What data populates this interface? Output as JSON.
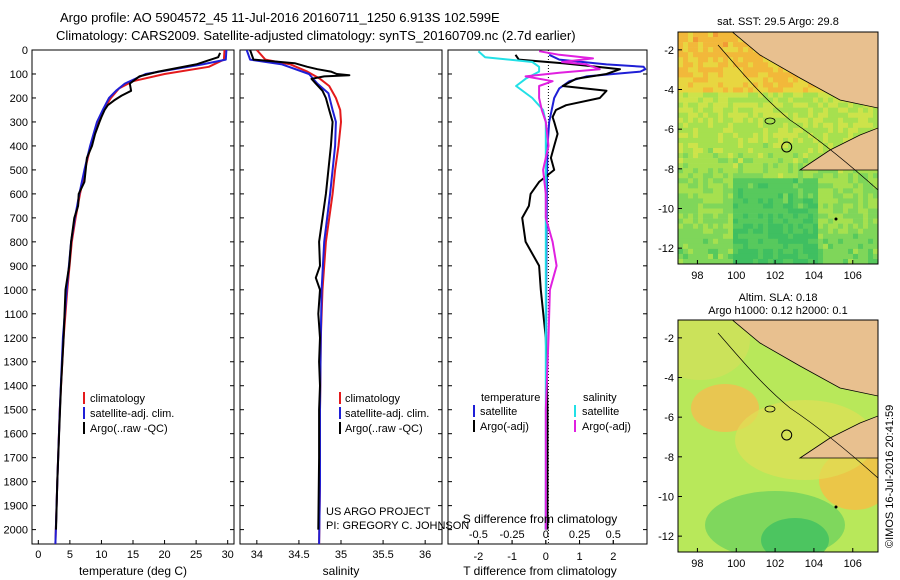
{
  "header": {
    "line1": "Argo profile: AO 5904572_45 11-Jul-2016 20160711_1250 6.913S 102.599E",
    "line2": "Climatology: CARS2009. Satellite-adjusted climatology: synTS_20160709.nc (2.7d earlier)"
  },
  "colors": {
    "climatology": "#e41a1c",
    "satellite": "#1f1fd6",
    "argo": "#000000",
    "sal_satellite": "#22e0e6",
    "sal_argo": "#e020e0"
  },
  "depth_axis": {
    "ticks": [
      "0",
      "100",
      "200",
      "300",
      "400",
      "500",
      "600",
      "700",
      "800",
      "900",
      "1000",
      "1100",
      "1200",
      "1300",
      "1400",
      "1500",
      "1600",
      "1700",
      "1800",
      "1900",
      "2000"
    ],
    "range": [
      0,
      2060
    ]
  },
  "chart_data": [
    {
      "type": "line",
      "name": "temperature-profile",
      "xlabel": "temperature (deg C)",
      "xlim": [
        -1,
        31
      ],
      "xticks": [
        "0",
        "5",
        "10",
        "15",
        "20",
        "25",
        "30"
      ],
      "ylim": [
        0,
        2060
      ],
      "legend": [
        "climatology",
        "satellite-adj. clim.",
        "Argo(..raw -QC)"
      ],
      "series": [
        {
          "name": "climatology",
          "color": "climatology",
          "depth": [
            0,
            40,
            70,
            100,
            130,
            160,
            200,
            250,
            300,
            400,
            500,
            600,
            700,
            800,
            1000,
            1200,
            1500,
            1800,
            2060
          ],
          "values": [
            29.5,
            29.4,
            27,
            20,
            15,
            12.8,
            11.5,
            10.3,
            9.4,
            8.3,
            7.4,
            6.6,
            5.9,
            5.3,
            4.6,
            4,
            3.4,
            3,
            2.7
          ]
        },
        {
          "name": "satellite-adj. clim.",
          "color": "satellite",
          "depth": [
            0,
            40,
            60,
            100,
            140,
            170,
            200,
            250,
            300,
            400,
            500,
            600,
            700,
            800,
            1000,
            1200,
            1500,
            1800,
            2060
          ],
          "values": [
            29.8,
            29.7,
            26,
            17,
            13.7,
            12.3,
            11.2,
            10.2,
            9.3,
            8.2,
            7.3,
            6.5,
            5.8,
            5.2,
            4.5,
            3.9,
            3.4,
            3,
            2.7
          ]
        },
        {
          "name": "Argo(..raw -QC)",
          "color": "argo",
          "depth": [
            12,
            30,
            60,
            90,
            110,
            140,
            170,
            190,
            210,
            230,
            250,
            280,
            300,
            350,
            400,
            450,
            500,
            550,
            600,
            650,
            700,
            800,
            900,
            1000,
            1200,
            1400,
            1600,
            1800,
            2000
          ],
          "values": [
            28.8,
            28.5,
            25,
            19,
            16,
            14.5,
            14.7,
            13.2,
            12,
            11,
            10.5,
            10,
            9.7,
            9,
            8.5,
            7.7,
            7.5,
            7.3,
            6.4,
            6.3,
            5.7,
            5.2,
            4.9,
            4.3,
            4,
            3.6,
            3.3,
            3,
            2.8
          ]
        }
      ]
    },
    {
      "type": "line",
      "name": "salinity-profile",
      "xlabel": "salinity",
      "xlim": [
        33.8,
        36.2
      ],
      "xticks": [
        "34",
        "34.5",
        "35",
        "35.5",
        "36"
      ],
      "ylim": [
        0,
        2060
      ],
      "legend": [
        "climatology",
        "satellite-adj. clim.",
        "Argo(..raw -QC)"
      ],
      "credit": [
        "US ARGO PROJECT",
        "PI: GREGORY C. JOHNSON"
      ],
      "series": [
        {
          "name": "climatology",
          "color": "climatology",
          "depth": [
            0,
            40,
            60,
            90,
            120,
            150,
            200,
            250,
            300,
            400,
            500,
            600,
            800,
            1000,
            1200,
            1500,
            1800,
            2060
          ],
          "values": [
            34.0,
            34.1,
            34.4,
            34.6,
            34.75,
            34.86,
            34.94,
            34.99,
            35.0,
            34.97,
            34.93,
            34.9,
            34.82,
            34.78,
            34.76,
            34.75,
            34.75,
            34.74
          ]
        },
        {
          "name": "satellite-adj. clim.",
          "color": "satellite",
          "depth": [
            0,
            40,
            60,
            100,
            140,
            180,
            250,
            300,
            400,
            500,
            600,
            800,
            1000,
            1200,
            1500,
            1800,
            2060
          ],
          "values": [
            33.88,
            33.92,
            34.3,
            34.62,
            34.72,
            34.85,
            34.9,
            34.94,
            34.93,
            34.9,
            34.87,
            34.8,
            34.77,
            34.76,
            34.75,
            34.75,
            34.74
          ]
        },
        {
          "name": "Argo(..raw -QC)",
          "color": "argo",
          "depth": [
            0,
            40,
            55,
            70,
            80,
            90,
            100,
            105,
            110,
            120,
            140,
            170,
            200,
            250,
            300,
            400,
            500,
            600,
            700,
            800,
            900,
            950,
            1000,
            1100,
            1200,
            1300,
            1400,
            1500,
            1700,
            2000
          ],
          "values": [
            33.92,
            33.96,
            34.45,
            34.6,
            34.72,
            34.88,
            34.95,
            35.1,
            34.8,
            34.65,
            34.7,
            34.78,
            34.82,
            34.86,
            34.9,
            34.88,
            34.85,
            34.82,
            34.78,
            34.74,
            34.75,
            34.7,
            34.75,
            34.73,
            34.75,
            34.74,
            34.75,
            34.74,
            34.74,
            34.73
          ]
        }
      ]
    },
    {
      "type": "line",
      "name": "difference-profile",
      "xlabel_top": "S difference from climatology",
      "xlabel": "T difference from climatology",
      "xlim": [
        -2.9,
        3.0
      ],
      "xticks_t": [
        "-2",
        "-1",
        "0",
        "1",
        "2"
      ],
      "xticks_s": [
        "-0.5",
        "-0.25",
        "0",
        "0.25",
        "0.5"
      ],
      "ylim": [
        0,
        2060
      ],
      "legend": {
        "temperature_header": "temperature",
        "salinity_header": "salinity",
        "items": [
          "satellite",
          "Argo(-adj)",
          "satellite",
          "Argo(-adj)"
        ]
      },
      "series": [
        {
          "name": "T satellite",
          "color": "satellite",
          "depth": [
            20,
            40,
            60,
            70,
            80,
            90,
            100,
            110,
            130,
            160,
            200,
            300,
            400,
            600,
            800,
            1000,
            1500,
            2000
          ],
          "values": [
            0.1,
            0.4,
            1.8,
            2.9,
            2.95,
            2.8,
            2.0,
            1.2,
            0.7,
            0.4,
            0.25,
            0.1,
            0.05,
            0.03,
            0.02,
            0.01,
            0.01,
            0.0
          ]
        },
        {
          "name": "T Argo(-adj)",
          "color": "argo",
          "depth": [
            20,
            40,
            55,
            65,
            80,
            100,
            120,
            150,
            170,
            200,
            230,
            250,
            280,
            300,
            350,
            400,
            450,
            500,
            550,
            600,
            650,
            700,
            800,
            900,
            1000,
            1200,
            1500,
            2000
          ],
          "values": [
            -0.9,
            -0.8,
            0.5,
            1.2,
            2.2,
            1.8,
            0.9,
            0.5,
            1.8,
            1.6,
            0.6,
            0.3,
            0.2,
            0.25,
            0.35,
            0.25,
            0.15,
            0.25,
            -0.2,
            -0.45,
            -0.5,
            -0.7,
            -0.6,
            -0.2,
            -0.15,
            0.0,
            0.05,
            0.05
          ]
        },
        {
          "name": "S satellite",
          "color": "sal_satellite",
          "depth": [
            5,
            30,
            50,
            70,
            90,
            120,
            150,
            200,
            250,
            300,
            400,
            600,
            800,
            1000,
            1200,
            1500,
            2000
          ],
          "values": [
            -0.5,
            -0.45,
            -0.1,
            -0.05,
            -0.05,
            -0.15,
            -0.22,
            -0.1,
            -0.02,
            0.0,
            0.0,
            0.0,
            0.0,
            0.0,
            0.0,
            0.0,
            0.0
          ]
        },
        {
          "name": "S Argo(-adj)",
          "color": "sal_argo",
          "depth": [
            5,
            20,
            35,
            50,
            60,
            80,
            95,
            110,
            130,
            150,
            200,
            250,
            300,
            400,
            500,
            600,
            700,
            800,
            900,
            1000,
            1200,
            1500,
            2000
          ],
          "values": [
            -0.05,
            0.1,
            0.35,
            0.12,
            0.3,
            0.4,
            0.1,
            -0.15,
            0.05,
            -0.05,
            -0.05,
            -0.03,
            0.0,
            0.02,
            -0.02,
            0.0,
            0.0,
            0.05,
            0.08,
            0.03,
            0.02,
            0.0,
            0.0
          ]
        }
      ]
    },
    {
      "type": "heatmap",
      "name": "sst-map",
      "title": "sat. SST: 29.5 Argo: 29.8",
      "xlim": [
        97,
        107.3
      ],
      "ylim": [
        -12.8,
        -1.1
      ],
      "xticks": [
        "98",
        "100",
        "102",
        "104",
        "106"
      ],
      "yticks": [
        "-2",
        "-4",
        "-6",
        "-8",
        "-10",
        "-12"
      ],
      "profile_marker": {
        "lon": 102.6,
        "lat": -6.9
      }
    },
    {
      "type": "heatmap",
      "name": "sla-map",
      "title_line1": "Altim. SLA: 0.18",
      "title_line2": "Argo h1000: 0.12 h2000: 0.1",
      "xlim": [
        97,
        107.3
      ],
      "ylim": [
        -12.8,
        -1.1
      ],
      "xticks": [
        "98",
        "100",
        "102",
        "104",
        "106"
      ],
      "yticks": [
        "-2",
        "-4",
        "-6",
        "-8",
        "-10",
        "-12"
      ],
      "profile_marker": {
        "lon": 102.6,
        "lat": -6.9
      }
    }
  ],
  "footer": {
    "stamp": "©IMOS 16-Jul-2016 20:41:59"
  }
}
